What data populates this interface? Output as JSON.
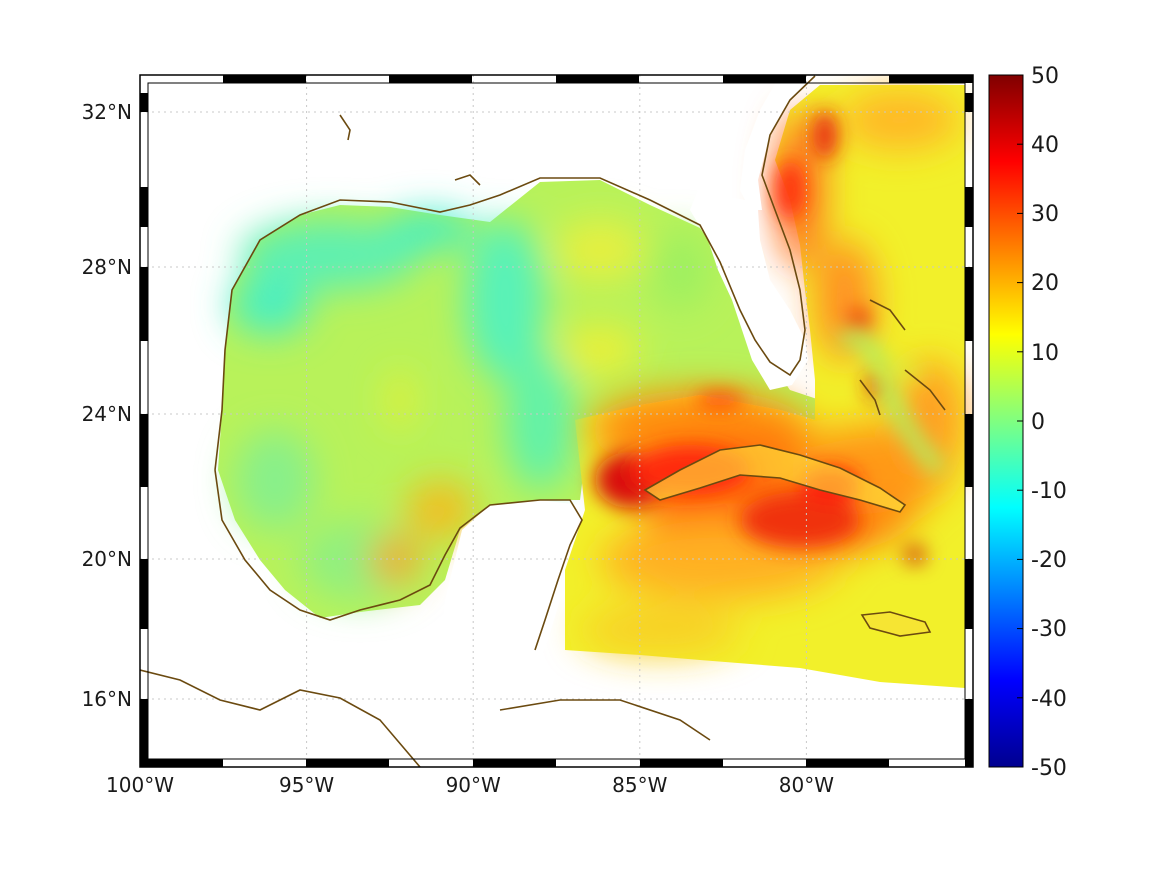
{
  "map": {
    "lon_ticks": [
      "100°W",
      "95°W",
      "90°W",
      "85°W",
      "80°W"
    ],
    "lat_ticks": [
      "32°N",
      "28°N",
      "24°N",
      "20°N",
      "16°N"
    ],
    "lon_tick_values": [
      -100,
      -95,
      -90,
      -85,
      -80
    ],
    "lat_tick_values": [
      32,
      28,
      24,
      20,
      16
    ],
    "lon_range": [
      -100,
      -75
    ],
    "lat_range": [
      14.3,
      33
    ],
    "grid": true,
    "coastline_color": "#6b4a10"
  },
  "colorbar": {
    "range": [
      -50,
      50
    ],
    "ticks": [
      "50",
      "40",
      "30",
      "20",
      "10",
      "0",
      "-10",
      "-20",
      "-30",
      "-40",
      "-50"
    ],
    "colormap": "jet",
    "placement": "right"
  }
}
